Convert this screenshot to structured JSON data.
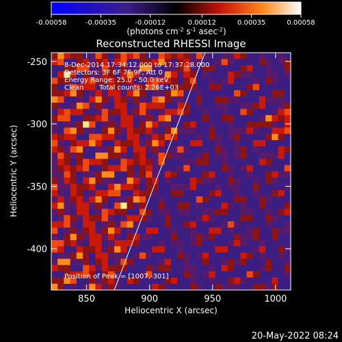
{
  "chart_data": {
    "type": "heatmap",
    "title": "Reconstructed RHESSI Image",
    "xlabel": "Heliocentric X (arcsec)",
    "ylabel": "Heliocentric Y (arcsec)",
    "xlim": [
      822,
      1012
    ],
    "ylim": [
      -433,
      -243
    ],
    "x_ticks": [
      850,
      900,
      950,
      1000
    ],
    "y_ticks": [
      -400,
      -350,
      -300,
      -250
    ],
    "colorbar": {
      "label_line1": "(photons cm",
      "label_sup1": "-2",
      "label_mid1": " s",
      "label_sup2": "-1",
      "label_mid2": " asec",
      "label_sup3": "-2",
      "label_end": ")",
      "range": [
        -0.00058,
        0.00058
      ],
      "ticks": [
        "-0.00058",
        "-0.00035",
        "-0.00012",
        "0.00012",
        "0.00035",
        "0.00058"
      ]
    },
    "annotations": {
      "time": "8-Dec-2014 17:34:12.000 to 17:37:28.000",
      "detectors": "Detectors: 3F 6F 7F 9F, Att 0",
      "energy": "Energy Range: 25.0 - 50.0 keV",
      "clean": "Clean",
      "counts": "Total counts: 2.26E+03",
      "peak": "Position of Peak = [1007,-301]"
    },
    "peak": [
      1007,
      -301
    ],
    "limb_line": [
      [
        872,
        -433
      ],
      [
        944,
        -243
      ]
    ],
    "grid": false
  },
  "footer": {
    "timestamp": "20-May-2022 08:24"
  },
  "colors": {
    "background": "#000000",
    "foreground": "#ffffff"
  }
}
